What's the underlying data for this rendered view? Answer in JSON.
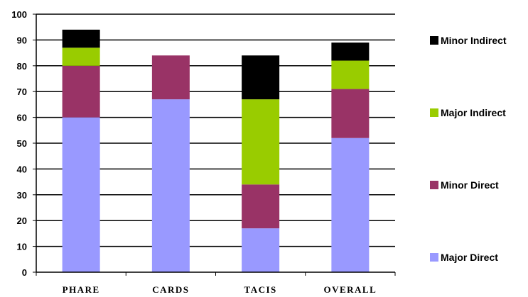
{
  "chart_data": {
    "type": "bar",
    "stacked": true,
    "title": "",
    "xlabel": "",
    "ylabel": "",
    "categories": [
      "PHARE",
      "CARDS",
      "TACIS",
      "OVERALL"
    ],
    "ylim": [
      0,
      100
    ],
    "yticks": [
      0,
      10,
      20,
      30,
      40,
      50,
      60,
      70,
      80,
      90,
      100
    ],
    "grid": true,
    "legend_position": "right",
    "series": [
      {
        "name": "Major Direct",
        "color": "#9999ff",
        "values": [
          60,
          67,
          17,
          52
        ]
      },
      {
        "name": "Minor Direct",
        "color": "#993366",
        "values": [
          20,
          17,
          17,
          19
        ]
      },
      {
        "name": "Major Indirect",
        "color": "#99cc00",
        "values": [
          7,
          0,
          33,
          11
        ]
      },
      {
        "name": "Minor Indirect",
        "color": "#000000",
        "values": [
          7,
          0,
          17,
          7
        ]
      }
    ]
  }
}
